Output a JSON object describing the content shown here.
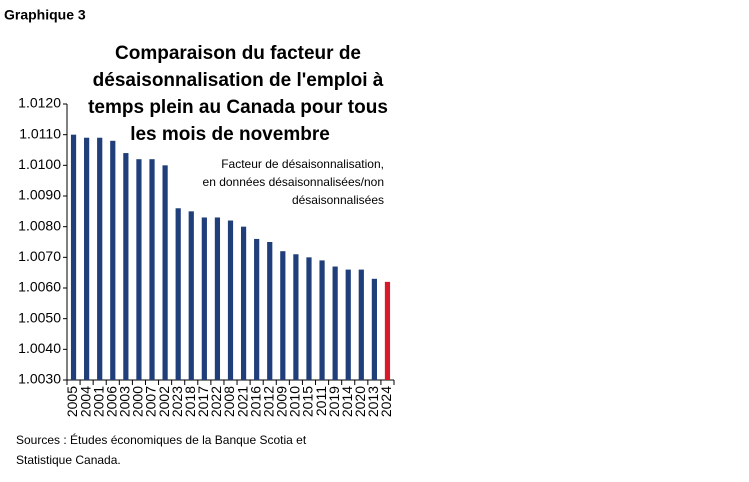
{
  "chart_data": {
    "type": "bar",
    "label": "Graphique 3",
    "title_lines": [
      "Comparaison du facteur de",
      "désaisonnalisation de l'emploi à",
      "temps plein au Canada pour tous",
      "les mois de novembre"
    ],
    "annotation_lines": [
      "Facteur de désaisonnalisation,",
      "en données désaisonnalisées/non",
      "désaisonnalisées"
    ],
    "source_lines": [
      "Sources : Études économiques de la Banque Scotia et",
      "Statistique Canada."
    ],
    "categories": [
      "2005",
      "2004",
      "2001",
      "2006",
      "2003",
      "2000",
      "2007",
      "2002",
      "2023",
      "2018",
      "2017",
      "2022",
      "2008",
      "2021",
      "2016",
      "2012",
      "2009",
      "2010",
      "2015",
      "2011",
      "2019",
      "2014",
      "2020",
      "2013",
      "2024"
    ],
    "values": [
      1.011,
      1.0109,
      1.0109,
      1.0108,
      1.0104,
      1.0102,
      1.0102,
      1.01,
      1.0086,
      1.0085,
      1.0083,
      1.0083,
      1.0082,
      1.008,
      1.0076,
      1.0075,
      1.0072,
      1.0071,
      1.007,
      1.0069,
      1.0067,
      1.0066,
      1.0066,
      1.0063,
      1.0062
    ],
    "colors": [
      "#1f3e7a",
      "#1f3e7a",
      "#1f3e7a",
      "#1f3e7a",
      "#1f3e7a",
      "#1f3e7a",
      "#1f3e7a",
      "#1f3e7a",
      "#1f3e7a",
      "#1f3e7a",
      "#1f3e7a",
      "#1f3e7a",
      "#1f3e7a",
      "#1f3e7a",
      "#1f3e7a",
      "#1f3e7a",
      "#1f3e7a",
      "#1f3e7a",
      "#1f3e7a",
      "#1f3e7a",
      "#1f3e7a",
      "#1f3e7a",
      "#1f3e7a",
      "#1f3e7a",
      "#d7192a"
    ],
    "ylim": [
      1.003,
      1.012
    ],
    "yticks": [
      {
        "value": 1.003,
        "label": "1.0030"
      },
      {
        "value": 1.004,
        "label": "1.0040"
      },
      {
        "value": 1.005,
        "label": "1.0050"
      },
      {
        "value": 1.006,
        "label": "1.0060"
      },
      {
        "value": 1.007,
        "label": "1.0070"
      },
      {
        "value": 1.008,
        "label": "1.0080"
      },
      {
        "value": 1.009,
        "label": "1.0090"
      },
      {
        "value": 1.01,
        "label": "1.0100"
      },
      {
        "value": 1.011,
        "label": "1.0110"
      },
      {
        "value": 1.012,
        "label": "1.0120"
      }
    ],
    "grid": false
  }
}
